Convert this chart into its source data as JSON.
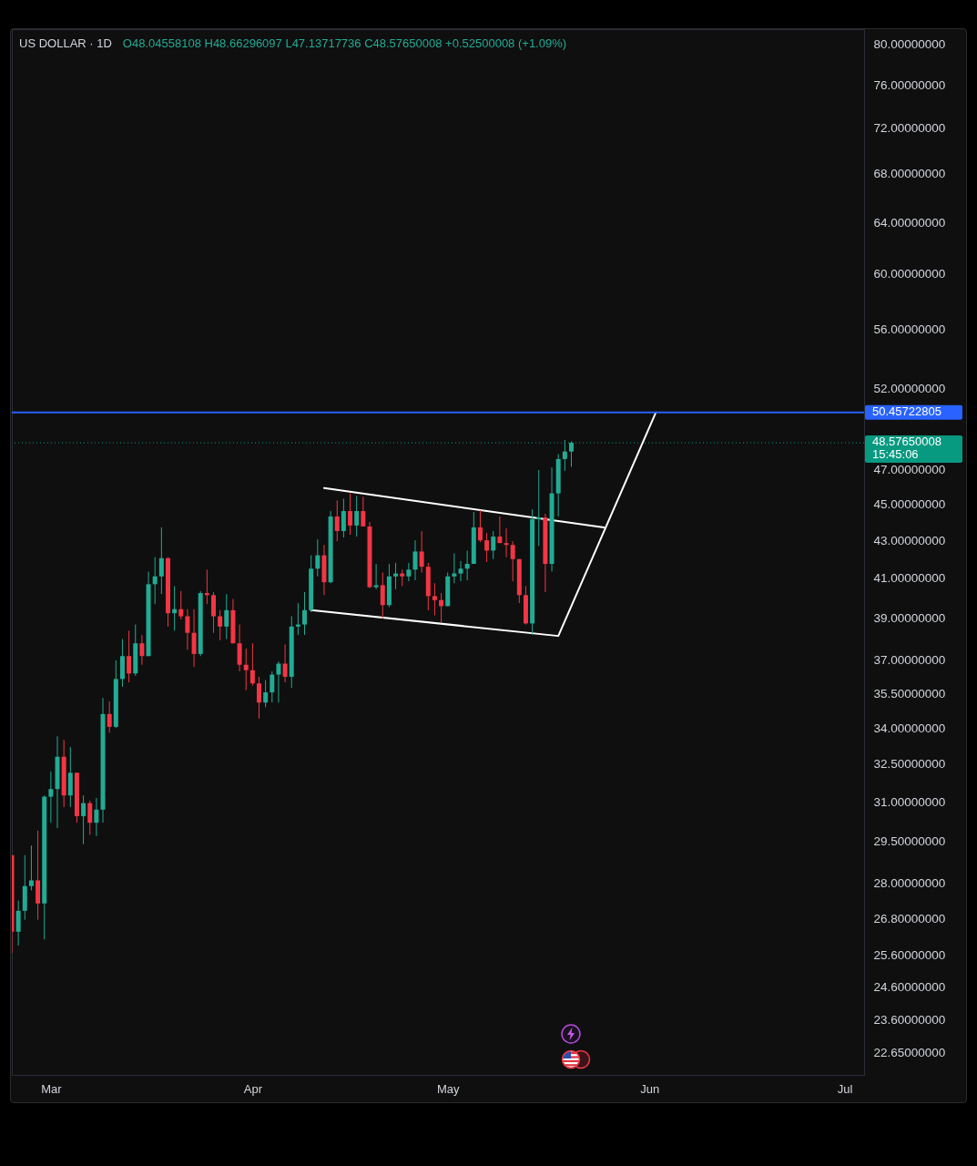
{
  "chart_data": {
    "type": "candlestick",
    "title": "US DOLLAR · 1D",
    "subtitle": "O48.04558108 H48.66296097 L47.13717736 C48.57650008 +0.52500008 (+1.09%)",
    "x": [
      "--02-23",
      "--02-24",
      "--02-25",
      "--02-26",
      "--02-27",
      "--02-28",
      "--03-01",
      "--03-02",
      "--03-03",
      "--03-04",
      "--03-05",
      "--03-06",
      "--03-07",
      "--03-08",
      "--03-09",
      "--03-10",
      "--03-11",
      "--03-12",
      "--03-13",
      "--03-14",
      "--03-15",
      "--03-16",
      "--03-17",
      "--03-18",
      "--03-19",
      "--03-20",
      "--03-21",
      "--03-22",
      "--03-23",
      "--03-24",
      "--03-25",
      "--03-26",
      "--03-27",
      "--03-28",
      "--03-29",
      "--03-30",
      "--03-31",
      "--04-01",
      "--04-02",
      "--04-03",
      "--04-04",
      "--04-05",
      "--04-06",
      "--04-07",
      "--04-08",
      "--04-09",
      "--04-10",
      "--04-11",
      "--04-12",
      "--04-13",
      "--04-14",
      "--04-15",
      "--04-16",
      "--04-17",
      "--04-18",
      "--04-19",
      "--04-20",
      "--04-21",
      "--04-22",
      "--04-23",
      "--04-24",
      "--04-25",
      "--04-26",
      "--04-27",
      "--04-28",
      "--04-29",
      "--04-30",
      "--05-01",
      "--05-02",
      "--05-03",
      "--05-04",
      "--05-05",
      "--05-06",
      "--05-07",
      "--05-08",
      "--05-09",
      "--05-10",
      "--05-11",
      "--05-12",
      "--05-13",
      "--05-14",
      "--05-15",
      "--05-16",
      "--05-17",
      "--05-18",
      "--05-19",
      "--05-20"
    ],
    "ohlc": [
      [
        29.0,
        29.0,
        25.65,
        26.35
      ],
      [
        26.35,
        27.4,
        25.9,
        27.05
      ],
      [
        27.05,
        29.0,
        26.75,
        27.9
      ],
      [
        27.9,
        29.35,
        27.75,
        28.1
      ],
      [
        28.1,
        29.9,
        26.75,
        27.3
      ],
      [
        27.3,
        31.25,
        26.1,
        31.2
      ],
      [
        31.2,
        32.2,
        30.2,
        31.5
      ],
      [
        31.5,
        33.65,
        30.0,
        32.8
      ],
      [
        32.8,
        33.5,
        30.8,
        31.25
      ],
      [
        31.25,
        33.2,
        30.8,
        32.15
      ],
      [
        32.15,
        32.15,
        30.2,
        30.45
      ],
      [
        30.45,
        31.25,
        29.4,
        30.95
      ],
      [
        30.95,
        31.05,
        29.75,
        30.2
      ],
      [
        30.2,
        31.15,
        29.7,
        30.7
      ],
      [
        30.7,
        35.3,
        30.2,
        34.6
      ],
      [
        34.6,
        35.15,
        33.8,
        34.05
      ],
      [
        34.05,
        37.0,
        34.0,
        36.15
      ],
      [
        36.15,
        38.0,
        35.8,
        37.2
      ],
      [
        37.2,
        38.4,
        36.0,
        36.4
      ],
      [
        36.4,
        38.7,
        36.3,
        37.8
      ],
      [
        37.8,
        38.2,
        36.8,
        37.2
      ],
      [
        37.2,
        41.35,
        37.2,
        40.7
      ],
      [
        40.7,
        42.1,
        39.7,
        41.1
      ],
      [
        41.1,
        43.7,
        40.2,
        42.05
      ],
      [
        42.05,
        42.1,
        38.6,
        39.25
      ],
      [
        39.25,
        40.6,
        38.4,
        39.45
      ],
      [
        39.45,
        40.35,
        38.95,
        39.1
      ],
      [
        39.1,
        39.45,
        37.5,
        38.3
      ],
      [
        38.3,
        39.45,
        36.7,
        37.3
      ],
      [
        37.3,
        40.35,
        37.2,
        40.25
      ],
      [
        40.25,
        41.45,
        39.7,
        40.15
      ],
      [
        40.15,
        40.3,
        38.3,
        39.1
      ],
      [
        39.1,
        39.4,
        37.95,
        38.6
      ],
      [
        38.6,
        40.2,
        38.0,
        39.4
      ],
      [
        39.4,
        39.95,
        37.8,
        37.8
      ],
      [
        37.8,
        38.7,
        36.5,
        36.8
      ],
      [
        36.8,
        37.55,
        35.65,
        36.55
      ],
      [
        36.55,
        37.8,
        35.85,
        35.95
      ],
      [
        35.95,
        36.25,
        34.4,
        35.1
      ],
      [
        35.1,
        36.1,
        34.9,
        35.55
      ],
      [
        35.55,
        36.5,
        35.1,
        36.35
      ],
      [
        36.35,
        36.95,
        35.1,
        36.85
      ],
      [
        36.85,
        37.75,
        36.0,
        36.25
      ],
      [
        36.25,
        39.1,
        35.75,
        38.6
      ],
      [
        38.6,
        39.75,
        38.2,
        38.7
      ],
      [
        38.7,
        40.3,
        38.2,
        39.4
      ],
      [
        39.4,
        42.2,
        39.3,
        41.5
      ],
      [
        41.5,
        43.05,
        41.1,
        42.2
      ],
      [
        42.2,
        42.75,
        40.15,
        40.8
      ],
      [
        40.8,
        44.6,
        40.75,
        44.3
      ],
      [
        44.3,
        45.2,
        42.95,
        43.5
      ],
      [
        43.5,
        45.3,
        43.15,
        44.6
      ],
      [
        44.6,
        45.6,
        43.3,
        43.8
      ],
      [
        43.8,
        45.45,
        43.2,
        44.6
      ],
      [
        44.6,
        45.4,
        43.75,
        43.75
      ],
      [
        43.75,
        44.0,
        40.5,
        40.55
      ],
      [
        40.55,
        41.75,
        40.45,
        40.65
      ],
      [
        40.65,
        41.3,
        39.0,
        39.65
      ],
      [
        39.65,
        41.75,
        39.55,
        41.1
      ],
      [
        41.1,
        41.8,
        40.45,
        41.25
      ],
      [
        41.25,
        41.45,
        40.6,
        41.1
      ],
      [
        41.1,
        41.8,
        40.85,
        41.45
      ],
      [
        41.45,
        43.0,
        40.9,
        42.4
      ],
      [
        42.4,
        43.5,
        41.3,
        41.6
      ],
      [
        41.6,
        41.8,
        39.4,
        40.1
      ],
      [
        40.1,
        40.75,
        39.15,
        39.9
      ],
      [
        39.9,
        40.25,
        38.8,
        39.6
      ],
      [
        39.6,
        41.3,
        39.6,
        41.1
      ],
      [
        41.1,
        42.3,
        40.75,
        41.25
      ],
      [
        41.25,
        41.9,
        40.85,
        41.5
      ],
      [
        41.5,
        42.45,
        40.9,
        41.75
      ],
      [
        41.75,
        44.55,
        41.75,
        43.7
      ],
      [
        43.7,
        44.65,
        42.9,
        43.0
      ],
      [
        43.0,
        43.4,
        41.85,
        42.45
      ],
      [
        42.45,
        43.5,
        42.0,
        43.2
      ],
      [
        43.2,
        44.3,
        42.85,
        42.85
      ],
      [
        42.85,
        43.65,
        42.1,
        42.75
      ],
      [
        42.75,
        42.95,
        40.85,
        42.0
      ],
      [
        42.0,
        42.0,
        39.75,
        40.15
      ],
      [
        40.15,
        40.6,
        38.7,
        38.75
      ],
      [
        38.75,
        44.7,
        38.2,
        44.15
      ],
      [
        44.15,
        46.95,
        42.7,
        44.25
      ],
      [
        44.25,
        44.45,
        40.3,
        41.75
      ],
      [
        41.75,
        47.1,
        41.35,
        45.6
      ],
      [
        45.6,
        47.9,
        44.3,
        47.6
      ],
      [
        47.6,
        48.75,
        46.9,
        48.05
      ],
      [
        48.04558108,
        48.66296097,
        47.13717736,
        48.57650008
      ]
    ],
    "colors": [
      "#f23645",
      "#22ab94",
      "#22ab94",
      "#22ab94",
      "#f23645",
      "#22ab94",
      "#22ab94",
      "#22ab94",
      "#f23645",
      "#22ab94",
      "#f23645",
      "#22ab94",
      "#f23645",
      "#22ab94",
      "#22ab94",
      "#f23645",
      "#22ab94",
      "#22ab94",
      "#f23645",
      "#22ab94",
      "#f23645",
      "#22ab94",
      "#22ab94",
      "#22ab94",
      "#f23645",
      "#22ab94",
      "#f23645",
      "#f23645",
      "#f23645",
      "#22ab94",
      "#f23645",
      "#f23645",
      "#f23645",
      "#22ab94",
      "#f23645",
      "#f23645",
      "#f23645",
      "#f23645",
      "#f23645",
      "#22ab94",
      "#22ab94",
      "#22ab94",
      "#f23645",
      "#22ab94",
      "#22ab94",
      "#22ab94",
      "#22ab94",
      "#22ab94",
      "#f23645",
      "#22ab94",
      "#f23645",
      "#22ab94",
      "#f23645",
      "#22ab94",
      "#f23645",
      "#f23645",
      "#22ab94",
      "#f23645",
      "#22ab94",
      "#22ab94",
      "#f23645",
      "#22ab94",
      "#22ab94",
      "#f23645",
      "#f23645",
      "#f23645",
      "#f23645",
      "#22ab94",
      "#22ab94",
      "#22ab94",
      "#22ab94",
      "#22ab94",
      "#f23645",
      "#f23645",
      "#22ab94",
      "#f23645",
      "#f23645",
      "#f23645",
      "#f23645",
      "#f23645",
      "#22ab94",
      "#22ab94",
      "#f23645",
      "#22ab94",
      "#22ab94",
      "#22ab94",
      "#22ab94"
    ],
    "series": [
      {
        "type": "line",
        "color": "#ffffff",
        "x": [
          "--04-12",
          "--05-25"
        ],
        "values": [
          45.9,
          43.7
        ]
      },
      {
        "type": "line",
        "color": "#ffffff",
        "x": [
          "--04-10",
          "--05-18",
          "--06-02"
        ],
        "values": [
          39.4,
          38.15,
          50.46
        ]
      }
    ],
    "ref_lines": [
      {
        "axis": "y",
        "value": 50.45722805,
        "label": "50.45722805",
        "color": "#2962ff",
        "line_style": "solid"
      },
      {
        "axis": "y",
        "value": 48.57650008,
        "label": "48.57650008\n15:45:06",
        "color": "#089981",
        "line_style": "dotted"
      }
    ],
    "log": true,
    "xlim": [
      "--02-23",
      "--07-04"
    ],
    "xticks": [
      {
        "value": "--03-01",
        "label": "Mar"
      },
      {
        "value": "--04-01",
        "label": "Apr"
      },
      {
        "value": "--05-01",
        "label": "May"
      },
      {
        "value": "--06-01",
        "label": "Jun"
      },
      {
        "value": "--07-01",
        "label": "Jul"
      }
    ],
    "ylim": [
      22.03,
      81.5
    ],
    "yticks": [
      {
        "value": 22.65,
        "label": "22.65000000"
      },
      {
        "value": 23.6,
        "label": "23.60000000"
      },
      {
        "value": 24.6,
        "label": "24.60000000"
      },
      {
        "value": 25.6,
        "label": "25.60000000"
      },
      {
        "value": 26.8,
        "label": "26.80000000"
      },
      {
        "value": 28,
        "label": "28.00000000"
      },
      {
        "value": 29.5,
        "label": "29.50000000"
      },
      {
        "value": 31,
        "label": "31.00000000"
      },
      {
        "value": 32.5,
        "label": "32.50000000"
      },
      {
        "value": 34,
        "label": "34.00000000"
      },
      {
        "value": 35.5,
        "label": "35.50000000"
      },
      {
        "value": 37,
        "label": "37.00000000"
      },
      {
        "value": 39,
        "label": "39.00000000"
      },
      {
        "value": 41,
        "label": "41.00000000"
      },
      {
        "value": 43,
        "label": "43.00000000"
      },
      {
        "value": 45,
        "label": "45.00000000"
      },
      {
        "value": 47,
        "label": "47.00000000"
      },
      {
        "value": 52,
        "label": "52.00000000"
      },
      {
        "value": 56,
        "label": "56.00000000"
      },
      {
        "value": 60,
        "label": "60.00000000"
      },
      {
        "value": 64,
        "label": "64.00000000"
      },
      {
        "value": 68,
        "label": "68.00000000"
      },
      {
        "value": 72,
        "label": "72.00000000"
      },
      {
        "value": 76,
        "label": "76.00000000"
      },
      {
        "value": 80,
        "label": "80.00000000"
      }
    ]
  }
}
